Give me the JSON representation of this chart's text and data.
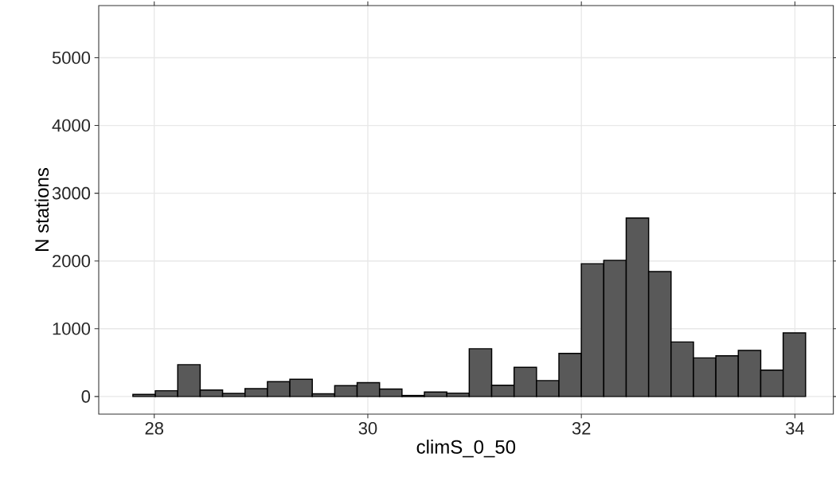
{
  "chart_data": {
    "type": "histogram",
    "xlabel": "climS_0_50",
    "ylabel": "N stations",
    "bins": [
      27.8,
      28.01,
      28.22,
      28.43,
      28.64,
      28.85,
      29.06,
      29.27,
      29.48,
      29.69,
      29.9,
      30.11,
      30.32,
      30.53,
      30.74,
      30.95,
      31.16,
      31.37,
      31.58,
      31.79,
      32.0,
      32.21,
      32.42,
      32.63,
      32.84,
      33.05,
      33.26,
      33.47,
      33.68,
      33.89,
      34.1
    ],
    "values": [
      30,
      85,
      470,
      95,
      45,
      115,
      220,
      255,
      40,
      160,
      205,
      110,
      15,
      65,
      50,
      705,
      165,
      430,
      235,
      635,
      1960,
      2010,
      2635,
      1845,
      805,
      570,
      600,
      680,
      390,
      940
    ],
    "color": "#595959",
    "xlim": [
      27.48,
      34.36
    ],
    "ylim": [
      -260,
      5770
    ],
    "xticks": [
      28,
      30,
      32,
      34
    ],
    "yticks": [
      0,
      1000,
      2000,
      3000,
      4000,
      5000
    ],
    "grid": true
  }
}
